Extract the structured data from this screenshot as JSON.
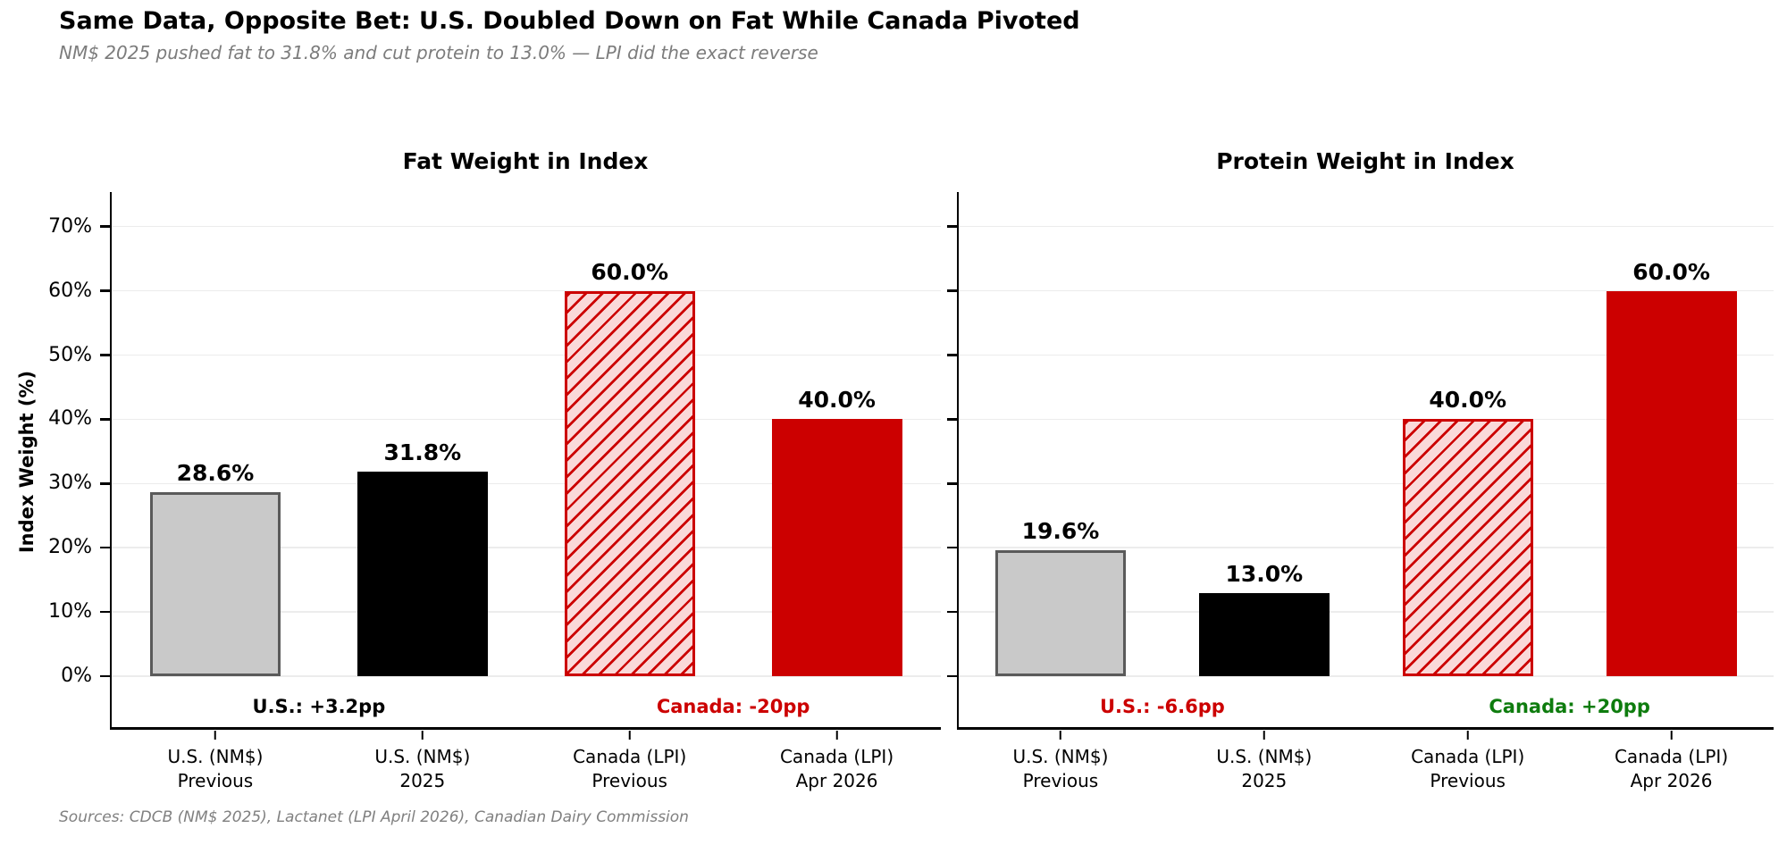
{
  "header": {
    "title": "Same Data, Opposite Bet: U.S. Doubled Down on Fat While Canada Pivoted",
    "subtitle": "NM$ 2025 pushed fat to 31.8% and cut protein to 13.0% — LPI did the exact reverse"
  },
  "footer": {
    "sources": "Sources: CDCB (NM$ 2025), Lactanet (LPI April 2026), Canadian Dairy Commission"
  },
  "colors": {
    "bar_gray_fill": "#c9c9c9",
    "bar_gray_border": "#5a5a5a",
    "bar_black": "#000000",
    "bar_red": "#cc0000",
    "hatch_fill": "#fad9d9",
    "hatch_line": "#cc0000",
    "grid": "#ececec",
    "annotation_black": "#000000",
    "annotation_red": "#cc0000",
    "annotation_green": "#0e7c0e",
    "subtitle_gray": "#7c7c7c",
    "footer_gray": "#808080"
  },
  "chart_data": [
    {
      "type": "bar",
      "title": "Fat Weight in Index",
      "ylabel": "Index Weight (%)",
      "categories": [
        [
          "U.S. (NM$)",
          "Previous"
        ],
        [
          "U.S. (NM$)",
          "2025"
        ],
        [
          "Canada (LPI)",
          "Previous"
        ],
        [
          "Canada (LPI)",
          "Apr 2026"
        ]
      ],
      "values": [
        28.6,
        31.8,
        60.0,
        40.0
      ],
      "value_labels": [
        "28.6%",
        "31.8%",
        "60.0%",
        "40.0%"
      ],
      "bar_styles": [
        "gray-solid",
        "black-solid",
        "red-hatched",
        "red-solid"
      ],
      "bar_keys": [
        "us-nms-previous",
        "us-nms-2025",
        "canada-lpi-previous",
        "canada-lpi-apr-2026"
      ],
      "yticks": [
        "0%",
        "10%",
        "20%",
        "30%",
        "40%",
        "50%",
        "60%",
        "70%"
      ],
      "ytick_values": [
        0,
        10,
        20,
        30,
        40,
        50,
        60,
        70
      ],
      "ylim": [
        0,
        74
      ],
      "grid": true,
      "legend": "none",
      "show_ytick_labels": true,
      "annotations": [
        {
          "text": "U.S.: +3.2pp",
          "color": "#000000",
          "between": [
            0,
            1
          ]
        },
        {
          "text": "Canada: -20pp",
          "color": "#cc0000",
          "between": [
            2,
            3
          ]
        }
      ]
    },
    {
      "type": "bar",
      "title": "Protein Weight in Index",
      "ylabel": "",
      "categories": [
        [
          "U.S. (NM$)",
          "Previous"
        ],
        [
          "U.S. (NM$)",
          "2025"
        ],
        [
          "Canada (LPI)",
          "Previous"
        ],
        [
          "Canada (LPI)",
          "Apr 2026"
        ]
      ],
      "values": [
        19.6,
        13.0,
        40.0,
        60.0
      ],
      "value_labels": [
        "19.6%",
        "13.0%",
        "40.0%",
        "60.0%"
      ],
      "bar_styles": [
        "gray-solid",
        "black-solid",
        "red-hatched",
        "red-solid"
      ],
      "bar_keys": [
        "us-nms-previous",
        "us-nms-2025",
        "canada-lpi-previous",
        "canada-lpi-apr-2026"
      ],
      "yticks": [
        "0%",
        "10%",
        "20%",
        "30%",
        "40%",
        "50%",
        "60%",
        "70%"
      ],
      "ytick_values": [
        0,
        10,
        20,
        30,
        40,
        50,
        60,
        70
      ],
      "ylim": [
        0,
        74
      ],
      "grid": true,
      "legend": "none",
      "show_ytick_labels": false,
      "annotations": [
        {
          "text": "U.S.: -6.6pp",
          "color": "#cc0000",
          "between": [
            0,
            1
          ]
        },
        {
          "text": "Canada: +20pp",
          "color": "#0e7c0e",
          "between": [
            2,
            3
          ]
        }
      ]
    }
  ]
}
